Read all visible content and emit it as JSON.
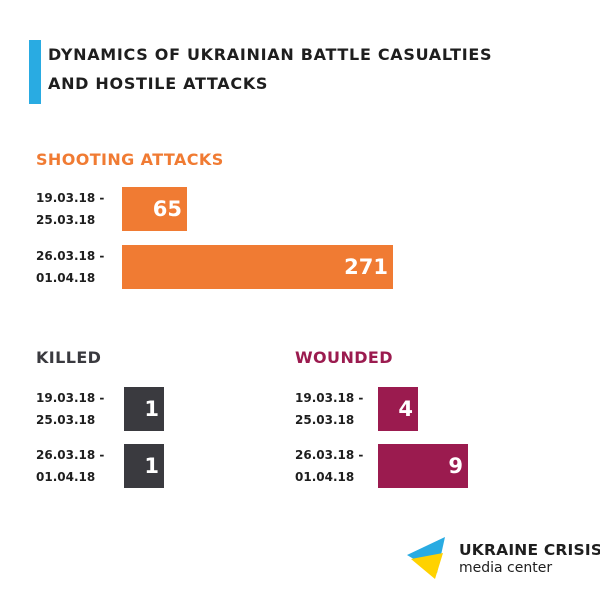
{
  "colors": {
    "accent": "#29abe2",
    "shooting": "#f07b33",
    "killed": "#3a3a3f",
    "wounded": "#9b1b4f",
    "logo_blue": "#29abe2",
    "logo_yellow": "#ffd200"
  },
  "header": {
    "title_line1": "Dynamics of Ukrainian battle casualties",
    "title_line2": "and hostile attacks"
  },
  "sections": {
    "shooting": {
      "title": "Shooting attacks",
      "rows": [
        {
          "label_line1": "19.03.18 -",
          "label_line2": "25.03.18",
          "value": "65"
        },
        {
          "label_line1": "26.03.18 -",
          "label_line2": "01.04.18",
          "value": "271"
        }
      ]
    },
    "killed": {
      "title": "Killed",
      "rows": [
        {
          "label_line1": "19.03.18 -",
          "label_line2": "25.03.18",
          "value": "1"
        },
        {
          "label_line1": "26.03.18 -",
          "label_line2": "01.04.18",
          "value": "1"
        }
      ]
    },
    "wounded": {
      "title": "Wounded",
      "rows": [
        {
          "label_line1": "19.03.18 -",
          "label_line2": "25.03.18",
          "value": "4"
        },
        {
          "label_line1": "26.03.18 -",
          "label_line2": "01.04.18",
          "value": "9"
        }
      ]
    }
  },
  "logo": {
    "name": "UKRAINE CRISIS",
    "subtitle": "media center",
    "icon": "ukraine-crisis-logo-icon"
  },
  "chart_data": [
    {
      "type": "bar",
      "title": "Shooting attacks",
      "categories": [
        "19.03.18 - 25.03.18",
        "26.03.18 - 01.04.18"
      ],
      "values": [
        65,
        271
      ]
    },
    {
      "type": "bar",
      "title": "Killed",
      "categories": [
        "19.03.18 - 25.03.18",
        "26.03.18 - 01.04.18"
      ],
      "values": [
        1,
        1
      ]
    },
    {
      "type": "bar",
      "title": "Wounded",
      "categories": [
        "19.03.18 - 25.03.18",
        "26.03.18 - 01.04.18"
      ],
      "values": [
        4,
        9
      ]
    }
  ]
}
